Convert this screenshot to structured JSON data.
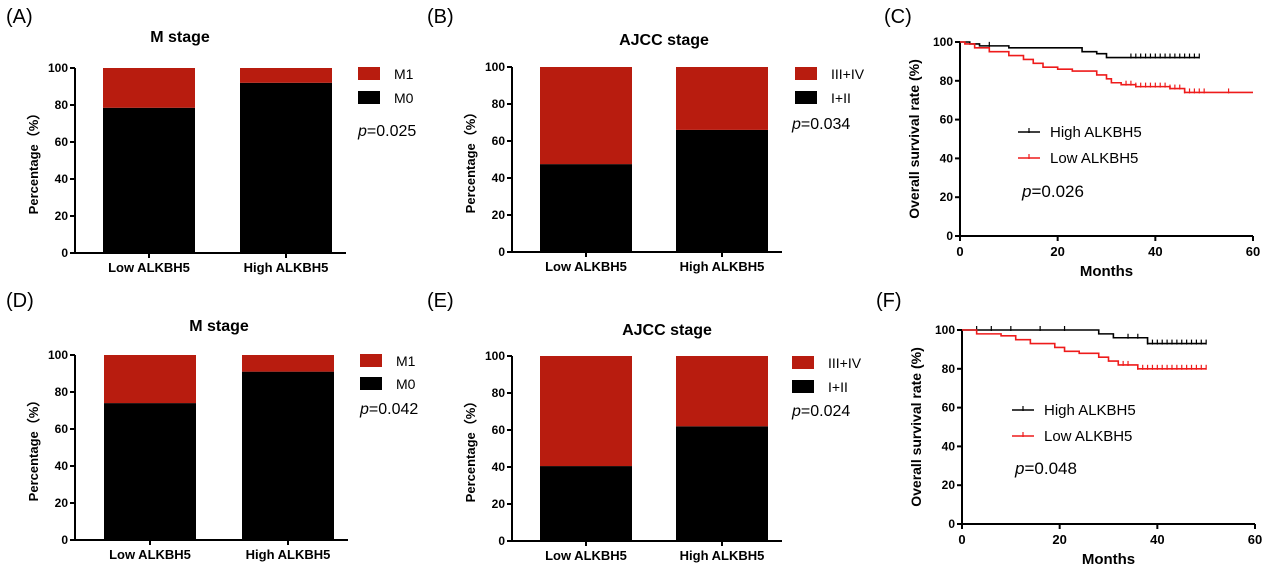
{
  "panels": [
    {
      "label": "(A)"
    },
    {
      "label": "(B)"
    },
    {
      "label": "(C)"
    },
    {
      "label": "(D)"
    },
    {
      "label": "(E)"
    },
    {
      "label": "(F)"
    }
  ],
  "colors": {
    "red": "#b81c0f",
    "red_line": "#ee1b1b",
    "black": "#000000"
  },
  "chart_data": [
    {
      "panel": "(A)",
      "type": "bar",
      "stacked": true,
      "title": "M stage",
      "ylabel": "Percentage（%）",
      "xlabel": "",
      "categories": [
        "Low ALKBH5",
        "High ALKBH5"
      ],
      "series": [
        {
          "name": "M0",
          "values": [
            78.5,
            92
          ],
          "color": "#000000"
        },
        {
          "name": "M1",
          "values": [
            21.5,
            8
          ],
          "color": "#b81c0f"
        }
      ],
      "ylim": [
        0,
        100
      ],
      "yticks": [
        0,
        20,
        40,
        60,
        80,
        100
      ],
      "legend": "right",
      "annotation": {
        "p": "p",
        "rest": "=0.025"
      }
    },
    {
      "panel": "(B)",
      "type": "bar",
      "stacked": true,
      "title": "AJCC stage",
      "ylabel": "Percentage（%）",
      "xlabel": "",
      "categories": [
        "Low ALKBH5",
        "High ALKBH5"
      ],
      "series": [
        {
          "name": "I+II",
          "values": [
            47.5,
            66
          ],
          "color": "#000000"
        },
        {
          "name": "III+IV",
          "values": [
            52.5,
            34
          ],
          "color": "#b81c0f"
        }
      ],
      "ylim": [
        0,
        100
      ],
      "yticks": [
        0,
        20,
        40,
        60,
        80,
        100
      ],
      "legend": "right",
      "annotation": {
        "p": "p",
        "rest": "=0.034"
      }
    },
    {
      "panel": "(C)",
      "type": "line",
      "step": true,
      "title": "",
      "ylabel": "Overall survival rate (%)",
      "xlabel": "Months",
      "xlim": [
        0,
        60
      ],
      "xticks": [
        0,
        20,
        40,
        60
      ],
      "ylim": [
        0,
        100
      ],
      "yticks": [
        0,
        20,
        40,
        60,
        80,
        100
      ],
      "legend": "inside-center",
      "series": [
        {
          "name": "High ALKBH5",
          "color": "#000000",
          "x": [
            0,
            2,
            4,
            10,
            25,
            28,
            30,
            49
          ],
          "y": [
            100,
            99,
            98,
            97,
            95,
            94,
            92,
            92
          ],
          "censored_x": [
            6,
            35,
            36,
            37,
            38,
            39,
            40,
            41,
            42,
            43,
            44,
            45,
            46,
            47,
            48,
            49
          ]
        },
        {
          "name": "Low ALKBH5",
          "color": "#ee1b1b",
          "x": [
            0,
            1,
            3,
            6,
            10,
            13,
            15,
            17,
            20,
            23,
            28,
            30,
            31,
            33,
            36,
            43,
            46,
            60
          ],
          "y": [
            100,
            99,
            97,
            95,
            93,
            91,
            89,
            87,
            86,
            85,
            83,
            81,
            79,
            78,
            77,
            76,
            74,
            74
          ],
          "censored_x": [
            34,
            35,
            36,
            37,
            38,
            39,
            40,
            41,
            42,
            43,
            44,
            45,
            46,
            47,
            48,
            49,
            50,
            55
          ]
        }
      ],
      "annotation": {
        "p": "p",
        "rest": "=0.026"
      }
    },
    {
      "panel": "(D)",
      "type": "bar",
      "stacked": true,
      "title": "M stage",
      "ylabel": "Percentage（%）",
      "xlabel": "",
      "categories": [
        "Low ALKBH5",
        "High ALKBH5"
      ],
      "series": [
        {
          "name": "M0",
          "values": [
            74,
            91
          ],
          "color": "#000000"
        },
        {
          "name": "M1",
          "values": [
            26,
            9
          ],
          "color": "#b81c0f"
        }
      ],
      "ylim": [
        0,
        100
      ],
      "yticks": [
        0,
        20,
        40,
        60,
        80,
        100
      ],
      "legend": "right",
      "annotation": {
        "p": "p",
        "rest": "=0.042"
      }
    },
    {
      "panel": "(E)",
      "type": "bar",
      "stacked": true,
      "title": "AJCC stage",
      "ylabel": "Percentage（%）",
      "xlabel": "",
      "categories": [
        "Low ALKBH5",
        "High ALKBH5"
      ],
      "series": [
        {
          "name": "I+II",
          "values": [
            40.5,
            62
          ],
          "color": "#000000"
        },
        {
          "name": "III+IV",
          "values": [
            59.5,
            38
          ],
          "color": "#b81c0f"
        }
      ],
      "ylim": [
        0,
        100
      ],
      "yticks": [
        0,
        20,
        40,
        60,
        80,
        100
      ],
      "legend": "right",
      "annotation": {
        "p": "p",
        "rest": "=0.024"
      }
    },
    {
      "panel": "(F)",
      "type": "line",
      "step": true,
      "title": "",
      "ylabel": "Overall survival rate (%)",
      "xlabel": "Months",
      "xlim": [
        0,
        60
      ],
      "xticks": [
        0,
        20,
        40,
        60
      ],
      "ylim": [
        0,
        100
      ],
      "yticks": [
        0,
        20,
        40,
        60,
        80,
        100
      ],
      "legend": "inside-center",
      "series": [
        {
          "name": "High ALKBH5",
          "color": "#000000",
          "x": [
            0,
            28,
            31,
            38,
            50
          ],
          "y": [
            100,
            98,
            96,
            93,
            93
          ],
          "censored_x": [
            3,
            6,
            10,
            16,
            21,
            34,
            36,
            38,
            39,
            40,
            41,
            42,
            43,
            44,
            45,
            46,
            47,
            48,
            49,
            50
          ]
        },
        {
          "name": "Low ALKBH5",
          "color": "#ee1b1b",
          "x": [
            0,
            3,
            8,
            11,
            14,
            19,
            21,
            24,
            28,
            30,
            32,
            36,
            50
          ],
          "y": [
            100,
            98,
            97,
            95,
            93,
            91,
            89,
            88,
            86,
            84,
            82,
            80,
            80
          ],
          "censored_x": [
            33,
            34,
            36,
            37,
            38,
            39,
            40,
            41,
            42,
            43,
            44,
            45,
            46,
            47,
            48,
            49,
            50
          ]
        }
      ],
      "annotation": {
        "p": "p",
        "rest": "=0.048"
      }
    }
  ]
}
